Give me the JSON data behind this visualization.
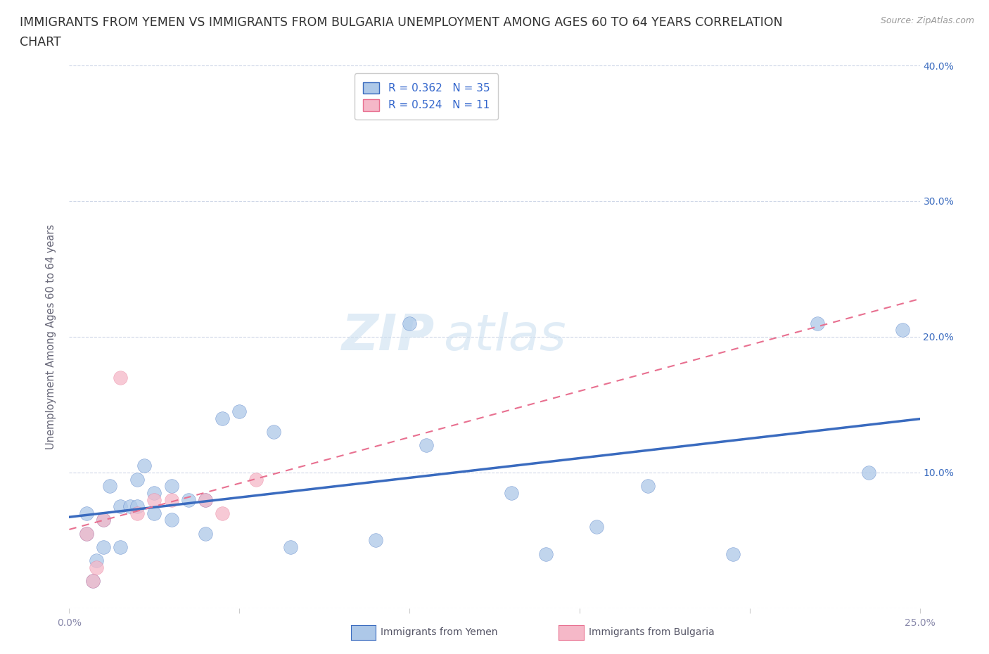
{
  "title_line1": "IMMIGRANTS FROM YEMEN VS IMMIGRANTS FROM BULGARIA UNEMPLOYMENT AMONG AGES 60 TO 64 YEARS CORRELATION",
  "title_line2": "CHART",
  "source": "Source: ZipAtlas.com",
  "ylabel": "Unemployment Among Ages 60 to 64 years",
  "xlim": [
    0.0,
    0.25
  ],
  "ylim": [
    0.0,
    0.4
  ],
  "xticks": [
    0.0,
    0.05,
    0.1,
    0.15,
    0.2,
    0.25
  ],
  "yticks": [
    0.0,
    0.1,
    0.2,
    0.3,
    0.4
  ],
  "xtick_labels": [
    "0.0%",
    "",
    "",
    "",
    "",
    "25.0%"
  ],
  "ytick_labels_right": [
    "",
    "10.0%",
    "20.0%",
    "30.0%",
    "40.0%"
  ],
  "yemen_color": "#adc8e8",
  "bulgaria_color": "#f5b8c8",
  "line_yemen_color": "#3a6bbf",
  "line_bulgaria_color": "#e87090",
  "watermark_zip": "ZIP",
  "watermark_atlas": "atlas",
  "legend_R_yemen": "0.362",
  "legend_N_yemen": "35",
  "legend_R_bulgaria": "0.524",
  "legend_N_bulgaria": "11",
  "yemen_x": [
    0.005,
    0.005,
    0.007,
    0.008,
    0.01,
    0.01,
    0.012,
    0.015,
    0.015,
    0.018,
    0.02,
    0.02,
    0.022,
    0.025,
    0.025,
    0.03,
    0.03,
    0.035,
    0.04,
    0.04,
    0.045,
    0.05,
    0.06,
    0.065,
    0.09,
    0.1,
    0.105,
    0.13,
    0.14,
    0.155,
    0.17,
    0.195,
    0.22,
    0.235,
    0.245
  ],
  "yemen_y": [
    0.055,
    0.07,
    0.02,
    0.035,
    0.045,
    0.065,
    0.09,
    0.045,
    0.075,
    0.075,
    0.075,
    0.095,
    0.105,
    0.07,
    0.085,
    0.065,
    0.09,
    0.08,
    0.055,
    0.08,
    0.14,
    0.145,
    0.13,
    0.045,
    0.05,
    0.21,
    0.12,
    0.085,
    0.04,
    0.06,
    0.09,
    0.04,
    0.21,
    0.1,
    0.205
  ],
  "bulgaria_x": [
    0.005,
    0.007,
    0.008,
    0.01,
    0.015,
    0.02,
    0.025,
    0.03,
    0.04,
    0.045,
    0.055
  ],
  "bulgaria_y": [
    0.055,
    0.02,
    0.03,
    0.065,
    0.17,
    0.07,
    0.08,
    0.08,
    0.08,
    0.07,
    0.095
  ],
  "background_color": "#ffffff",
  "grid_color": "#d0d8e8",
  "title_fontsize": 12.5,
  "axis_fontsize": 10.5,
  "tick_fontsize": 10,
  "legend_fontsize": 11,
  "marker_size": 200,
  "tick_color": "#8888aa"
}
